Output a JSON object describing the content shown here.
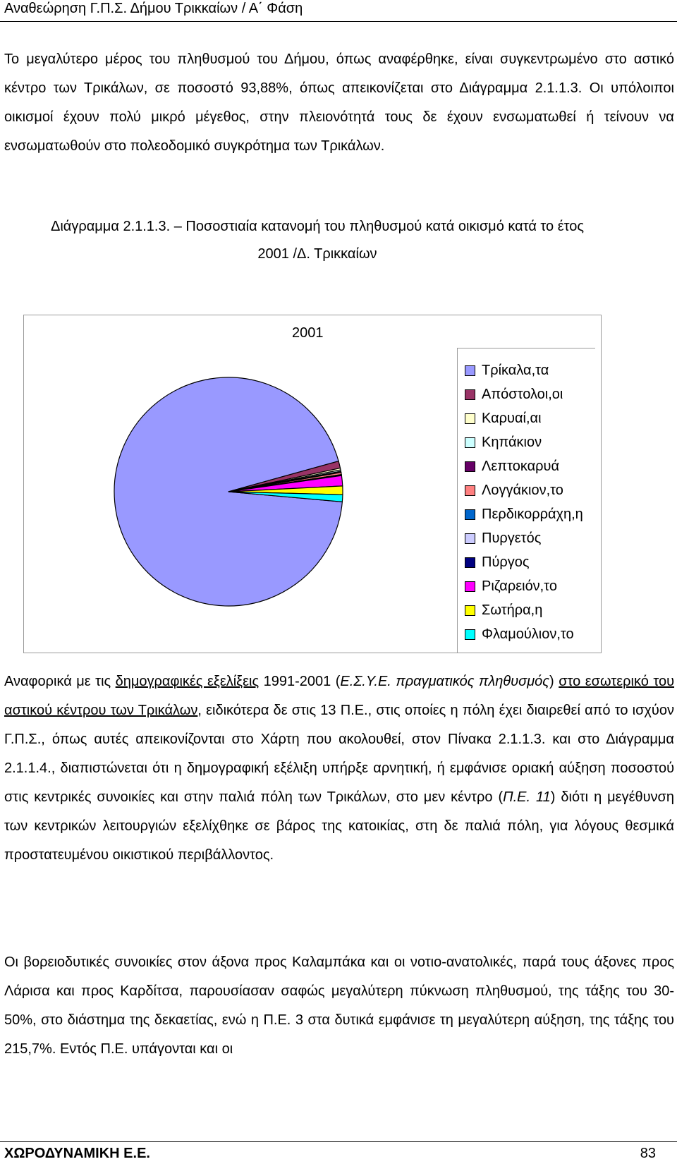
{
  "header": {
    "title": "Αναθεώρηση Γ.Π.Σ. Δήμου Τρικκαίων / Α΄ Φάση"
  },
  "para1": {
    "text": "Το μεγαλύτερο μέρος του πληθυσμού του Δήμου, όπως αναφέρθηκε, είναι συγκεντρωμένο στο αστικό κέντρο των Τρικάλων, σε ποσοστό 93,88%, όπως απεικονίζεται στο Διάγραμμα 2.1.1.3. Οι υπόλοιποι οικισμοί έχουν πολύ μικρό μέγεθος, στην πλειονότητά τους δε έχουν ενσωματωθεί ή τείνουν να ενσωματωθούν στο πολεοδομικό συγκρότημα των Τρικάλων."
  },
  "caption": {
    "line1": "Διάγραμμα 2.1.1.3. – Ποσοστιαία κατανομή του πληθυσμού κατά οικισμό κατά το έτος",
    "line2": "2001 /Δ. Τρικκαίων"
  },
  "chart_data": {
    "type": "pie",
    "title": "2001",
    "legend": "right",
    "categories": [
      "Τρίκαλα,τα",
      "Απόστολοι,οι",
      "Καρυαί,αι",
      "Κηπάκιον",
      "Λεπτοκαρυά",
      "Λογγάκιον,το",
      "Περδικορράχη,η",
      "Πυργετός",
      "Πύργος",
      "Ριζαρειόν,το",
      "Σωτήρα,η",
      "Φλαμούλιον,το"
    ],
    "values": [
      93.88,
      1.0,
      0.25,
      0.2,
      0.15,
      0.3,
      0.05,
      0.05,
      0.05,
      1.45,
      1.2,
      1.0
    ],
    "colors": [
      "#9999ff",
      "#993366",
      "#ffffcc",
      "#ccffff",
      "#660066",
      "#ff8080",
      "#0066cc",
      "#ccccff",
      "#000080",
      "#ff00ff",
      "#ffff00",
      "#00ffff"
    ]
  },
  "para2": {
    "t1": "Αναφορικά με τις ",
    "u1": "δημογραφικές εξελίξεις",
    "t2": " 1991-2001 (",
    "i1": "Ε.Σ.Υ.Ε. πραγματικός πληθυσμός",
    "t3": ") ",
    "u2": "στο εσωτερικό του αστικού κέντρου των Τρικάλων",
    "t4": ", ειδικότερα δε στις 13 Π.Ε., στις οποίες η πόλη έχει διαιρεθεί από το ισχύον Γ.Π.Σ., όπως αυτές απεικονίζονται στο Χάρτη που ακολουθεί, στον Πίνακα 2.1.1.3. και στο Διάγραμμα 2.1.1.4., διαπιστώνεται ότι η δημογραφική εξέλιξη υπήρξε αρνητική, ή εμφάνισε οριακή αύξηση ποσοστού στις κεντρικές συνοικίες και στην παλιά πόλη των Τρικάλων, στο μεν κέντρο (",
    "i2": "Π.Ε. 11",
    "t5": ") διότι η μεγέθυνση των κεντρικών λειτουργιών εξελίχθηκε σε βάρος της κατοικίας, στη δε παλιά πόλη, για λόγους θεσμικά προστατευμένου οικιστικού περιβάλλοντος."
  },
  "para3": {
    "text": "Οι βορειοδυτικές συνοικίες στον άξονα προς Καλαμπάκα και οι νοτιο-ανατολικές, παρά τους άξονες προς Λάρισα και προς Καρδίτσα, παρουσίασαν σαφώς μεγαλύτερη πύκνωση πληθυσμού, της τάξης του 30-50%, στο διάστημα της δεκαετίας, ενώ η Π.Ε. 3 στα δυτικά εμφάνισε τη μεγαλύτερη αύξηση, της τάξης του 215,7%. Εντός Π.Ε. υπάγονται και οι"
  },
  "footer": {
    "left": "ΧΩΡΟΔΥΝΑΜΙΚΗ Ε.Ε.",
    "page": "83"
  }
}
